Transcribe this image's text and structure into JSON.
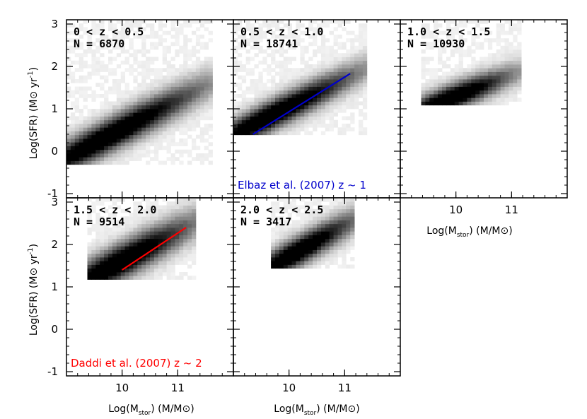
{
  "chart_data": {
    "type": "heatmap",
    "layout": "2x3 grid of density panels, 5 panels used",
    "xlim": [
      9.0,
      12.0
    ],
    "ylim": [
      -1.1,
      3.1
    ],
    "x_ticks": [
      "10",
      "11"
    ],
    "y_ticks": [
      "-1",
      "0",
      "1",
      "2",
      "3"
    ],
    "xlabel": "Log(M_stor) (M/M_sun)",
    "xlabel_parts": {
      "pre": "Log(M",
      "sub": "stor",
      "mid": ") (M/M",
      "sun": "⊙",
      "post": ")"
    },
    "ylabel": "Log(SFR) (M_sun yr^-1)",
    "ylabel_parts": {
      "pre": "Log(SFR) (M",
      "sun": "⊙",
      "mid": " yr",
      "sup": "-1",
      "post": ")"
    },
    "panels": [
      {
        "id": "p1",
        "redshift_label": "0 < z < 0.5",
        "count_label": "N = 6870",
        "ridge": [
          [
            9.0,
            -0.15
          ],
          [
            11.0,
            1.2
          ]
        ],
        "width_x": 0.55,
        "spread_y": 0.28,
        "y_floor": -0.3,
        "mass_min": 9.0,
        "mass_max": 11.6
      },
      {
        "id": "p2",
        "redshift_label": "0.5 < z < 1.0",
        "count_label": "N = 18741",
        "ridge": [
          [
            9.0,
            0.4
          ],
          [
            11.0,
            1.7
          ]
        ],
        "width_x": 0.5,
        "spread_y": 0.25,
        "y_floor": 0.35,
        "mass_min": 9.0,
        "mass_max": 11.4,
        "line": {
          "x": [
            9.35,
            11.1
          ],
          "y": [
            0.4,
            1.83
          ],
          "color": "#0000cc"
        },
        "reference": "Elbaz et al. (2007) z ~ 1"
      },
      {
        "id": "p3",
        "redshift_label": "1.0 < z < 1.5",
        "count_label": "N = 10930",
        "ridge": [
          [
            9.5,
            1.05
          ],
          [
            11.0,
            1.8
          ]
        ],
        "width_x": 0.35,
        "spread_y": 0.22,
        "y_floor": 1.05,
        "mass_min": 9.4,
        "mass_max": 11.2
      },
      {
        "id": "p4",
        "redshift_label": "1.5 < z < 2.0",
        "count_label": "N = 9514",
        "ridge": [
          [
            9.4,
            1.2
          ],
          [
            11.0,
            2.3
          ]
        ],
        "width_x": 0.45,
        "spread_y": 0.3,
        "y_floor": 1.15,
        "mass_min": 9.35,
        "mass_max": 11.3,
        "line": {
          "x": [
            10.0,
            11.15
          ],
          "y": [
            1.4,
            2.4
          ],
          "color": "#ff0000"
        },
        "reference": "Daddi et al. (2007) z ~ 2"
      },
      {
        "id": "p5",
        "redshift_label": "2.0 < z < 2.5",
        "count_label": "N = 3417",
        "ridge": [
          [
            9.7,
            1.5
          ],
          [
            11.0,
            2.45
          ]
        ],
        "width_x": 0.35,
        "spread_y": 0.25,
        "y_floor": 1.45,
        "mass_min": 9.7,
        "mass_max": 11.2
      }
    ]
  }
}
